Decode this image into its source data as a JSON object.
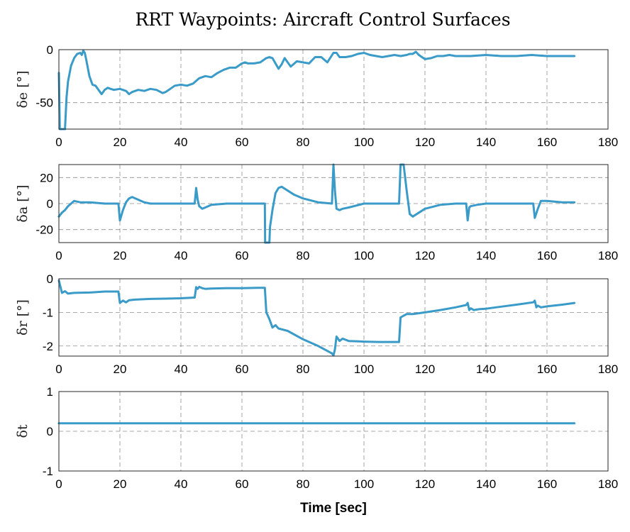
{
  "figure": {
    "title": "RRT Waypoints: Aircraft Control Surfaces"
  },
  "chart_data": [
    {
      "type": "line",
      "title": "RRT Waypoints: Aircraft Control Surfaces",
      "xlabel": "",
      "ylabel": "δe [°]",
      "xlim": [
        0,
        180
      ],
      "ylim": [
        -75,
        0
      ],
      "xticks": [
        "0",
        "20",
        "40",
        "60",
        "80",
        "100",
        "120",
        "140",
        "160",
        "180"
      ],
      "yticks": [
        "0",
        "-50"
      ],
      "ytick_values": [
        0,
        -50
      ],
      "grid": true,
      "color": "#3a9bc8",
      "series": [
        {
          "x": [
            0,
            0.3,
            0.5,
            2,
            2.5,
            3,
            4,
            5,
            6,
            7,
            7.5,
            8,
            8.5,
            9,
            10,
            11,
            12,
            13,
            14,
            15,
            16,
            17,
            18,
            20,
            22,
            23,
            24,
            26,
            28,
            30,
            32,
            34,
            35,
            37,
            38,
            40,
            42,
            44,
            46,
            48,
            50,
            52,
            54,
            56,
            58,
            60,
            61,
            62,
            64,
            66,
            68,
            69,
            70,
            72,
            73,
            74,
            75,
            76,
            78,
            80,
            82,
            84,
            86,
            88,
            90,
            91,
            92,
            94,
            96,
            98,
            100,
            102,
            104,
            106,
            108,
            110,
            112,
            114,
            115,
            116,
            117,
            118,
            119,
            120,
            122,
            124,
            126,
            128,
            130,
            135,
            140,
            145,
            150,
            155,
            160,
            165,
            169
          ],
          "y": [
            -22,
            -75,
            -75,
            -75,
            -45,
            -30,
            -15,
            -8,
            -4,
            -3,
            -5,
            -1,
            -3,
            -10,
            -25,
            -33,
            -34,
            -38,
            -42,
            -38,
            -36,
            -37,
            -38,
            -37,
            -39,
            -42,
            -40,
            -38,
            -39,
            -37,
            -38,
            -41,
            -40,
            -36,
            -34,
            -33,
            -34,
            -32,
            -27,
            -25,
            -26,
            -22,
            -19,
            -17,
            -17,
            -13,
            -12,
            -13,
            -13,
            -12,
            -8,
            -7,
            -8,
            -18,
            -14,
            -8,
            -12,
            -16,
            -11,
            -12,
            -13,
            -7,
            -7,
            -12,
            -3,
            -3,
            -7,
            -7,
            -6,
            -4,
            -3,
            -5,
            -6,
            -7,
            -6,
            -5,
            -6,
            -5,
            -4,
            -4,
            -2,
            -5,
            -7,
            -9,
            -8,
            -6,
            -6,
            -5,
            -6,
            -6,
            -5,
            -6,
            -6,
            -5,
            -6,
            -6,
            -6
          ]
        }
      ]
    },
    {
      "type": "line",
      "xlabel": "",
      "ylabel": "δa [°]",
      "xlim": [
        0,
        180
      ],
      "ylim": [
        -30,
        30
      ],
      "xticks": [
        "0",
        "20",
        "40",
        "60",
        "80",
        "100",
        "120",
        "140",
        "160",
        "180"
      ],
      "yticks": [
        "20",
        "0",
        "-20"
      ],
      "ytick_values": [
        20,
        0,
        -20
      ],
      "grid": true,
      "color": "#3a9bc8",
      "series": [
        {
          "x": [
            0,
            1,
            2,
            3,
            4,
            5,
            7,
            10,
            15,
            19.5,
            20,
            21,
            22,
            23,
            24,
            26,
            28,
            30,
            35,
            40,
            44.5,
            45,
            45.5,
            46,
            47,
            48,
            50,
            55,
            60,
            65,
            67.5,
            67.6,
            69,
            69.2,
            70,
            71,
            72,
            73,
            75,
            77,
            80,
            85,
            89.5,
            90,
            90.5,
            91,
            92,
            93,
            95,
            100,
            105,
            110,
            111.5,
            112,
            113,
            114,
            115,
            116,
            118,
            120,
            125,
            130,
            133.5,
            134,
            134.5,
            135,
            137,
            140,
            145,
            150,
            155.5,
            156,
            157,
            158,
            160,
            165,
            169
          ],
          "y": [
            -10,
            -7,
            -5,
            -2,
            0,
            2,
            1,
            1,
            0,
            0,
            -13,
            -5,
            1,
            4,
            5,
            3,
            1,
            0,
            0,
            0,
            0,
            12,
            3,
            -2,
            -4,
            -3,
            -1,
            0,
            0,
            0,
            0,
            -30,
            -30,
            -18,
            -5,
            8,
            12,
            13,
            10,
            7,
            4,
            1,
            0,
            30,
            10,
            -4,
            -5,
            -4,
            -3,
            0,
            0,
            0,
            0,
            30,
            30,
            10,
            -8,
            -10,
            -7,
            -4,
            -1,
            0,
            0,
            -13,
            -3,
            -2,
            -1,
            0,
            0,
            0,
            0,
            -11,
            -4,
            2,
            2,
            1,
            1
          ]
        }
      ]
    },
    {
      "type": "line",
      "xlabel": "",
      "ylabel": "δr [°]",
      "xlim": [
        0,
        180
      ],
      "ylim": [
        -2.3,
        0
      ],
      "xticks": [
        "0",
        "20",
        "40",
        "60",
        "80",
        "100",
        "120",
        "140",
        "160",
        "180"
      ],
      "yticks": [
        "0",
        "-1",
        "-2"
      ],
      "ytick_values": [
        0,
        -1,
        -2
      ],
      "grid": true,
      "color": "#3a9bc8",
      "series": [
        {
          "x": [
            0,
            1,
            2,
            3,
            5,
            10,
            15,
            19.5,
            20,
            21,
            22,
            23,
            25,
            30,
            35,
            40,
            44.5,
            45,
            45.5,
            46,
            47,
            48,
            50,
            55,
            60,
            65,
            67.5,
            68,
            69,
            70,
            71,
            72,
            75,
            80,
            85,
            89.5,
            90,
            90.5,
            91,
            92,
            93,
            95,
            100,
            105,
            110,
            111.5,
            112,
            113,
            114,
            116,
            120,
            125,
            130,
            133.5,
            134,
            134.5,
            135,
            136,
            138,
            140,
            145,
            150,
            155.5,
            156,
            156.5,
            157,
            158,
            160,
            165,
            169
          ],
          "y": [
            -0.05,
            -0.42,
            -0.37,
            -0.44,
            -0.42,
            -0.41,
            -0.38,
            -0.38,
            -0.72,
            -0.65,
            -0.7,
            -0.64,
            -0.62,
            -0.6,
            -0.59,
            -0.58,
            -0.56,
            -0.25,
            -0.3,
            -0.24,
            -0.28,
            -0.3,
            -0.29,
            -0.28,
            -0.28,
            -0.27,
            -0.27,
            -1.0,
            -1.2,
            -1.45,
            -1.38,
            -1.48,
            -1.55,
            -1.8,
            -2.0,
            -2.22,
            -2.28,
            -2.1,
            -1.72,
            -1.85,
            -1.78,
            -1.85,
            -1.87,
            -1.88,
            -1.88,
            -1.88,
            -1.15,
            -1.1,
            -1.05,
            -1.05,
            -1.0,
            -0.93,
            -0.85,
            -0.78,
            -0.72,
            -0.93,
            -0.88,
            -0.93,
            -0.9,
            -0.89,
            -0.83,
            -0.77,
            -0.7,
            -0.65,
            -0.85,
            -0.8,
            -0.85,
            -0.82,
            -0.77,
            -0.72
          ]
        }
      ]
    },
    {
      "type": "line",
      "xlabel": "Time [sec]",
      "ylabel": "δt",
      "xlim": [
        0,
        180
      ],
      "ylim": [
        -1,
        1
      ],
      "xticks": [
        "0",
        "20",
        "40",
        "60",
        "80",
        "100",
        "120",
        "140",
        "160",
        "180"
      ],
      "yticks": [
        "1",
        "0",
        "-1"
      ],
      "ytick_values": [
        1,
        0,
        -1
      ],
      "grid": true,
      "color": "#3a9bc8",
      "series": [
        {
          "x": [
            0,
            169
          ],
          "y": [
            0.2,
            0.2
          ]
        }
      ]
    }
  ]
}
